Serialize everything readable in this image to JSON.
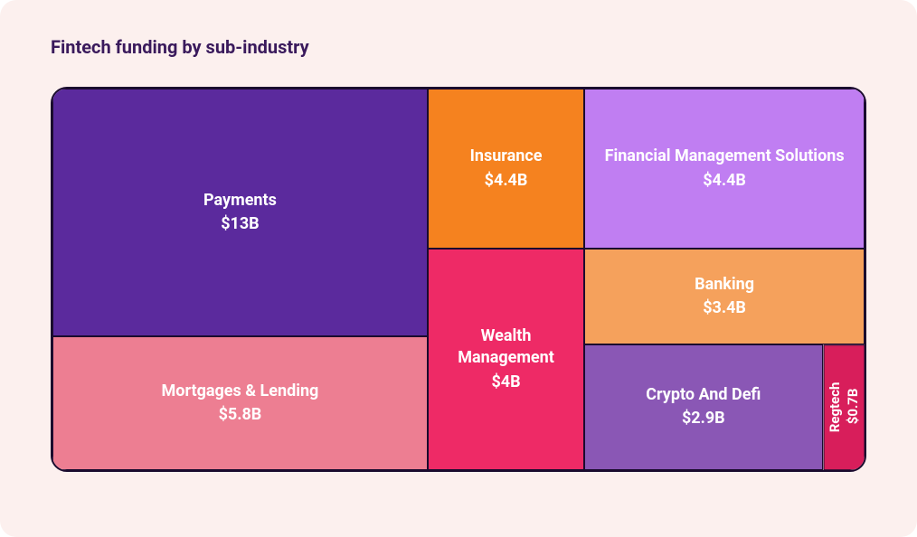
{
  "card": {
    "background_color": "#fcf0ee",
    "title_color": "#3a1a5c",
    "border_color": "#1a0b2e"
  },
  "title": "Fintech funding by sub-industry",
  "treemap": {
    "type": "treemap",
    "width_pct_columns": [
      46.2,
      19.3,
      34.5
    ],
    "col1": {
      "payments": {
        "label": "Payments",
        "value": "$13B",
        "color": "#5b2a9d",
        "height_pct": 65
      },
      "mortgages": {
        "label": "Mortgages & Lending",
        "value": "$5.8B",
        "color": "#ed7e92",
        "height_pct": 35
      }
    },
    "col2": {
      "insurance": {
        "label": "Insurance",
        "value": "$4.4B",
        "color": "#f5821f",
        "height_pct": 42
      },
      "wealth": {
        "label": "Wealth Management",
        "value": "$4B",
        "color": "#ee2a66",
        "height_pct": 58
      }
    },
    "col3": {
      "top": {
        "height_pct": 42,
        "fms": {
          "label": "Financial Management Solutions",
          "value": "$4.4B",
          "color": "#c07ef2",
          "width_pct": 100
        }
      },
      "mid": {
        "height_pct": 25,
        "banking": {
          "label": "Banking",
          "value": "$3.4B",
          "color": "#f5a15c",
          "width_pct": 100
        }
      },
      "bot": {
        "height_pct": 33,
        "crypto": {
          "label": "Crypto And Defi",
          "value": "$2.9B",
          "color": "#8a57b5",
          "width_pct": 85
        },
        "regtech": {
          "label": "Regtech",
          "value": "$0.7B",
          "color": "#d81e5b",
          "width_pct": 15,
          "vertical": true
        }
      }
    }
  }
}
